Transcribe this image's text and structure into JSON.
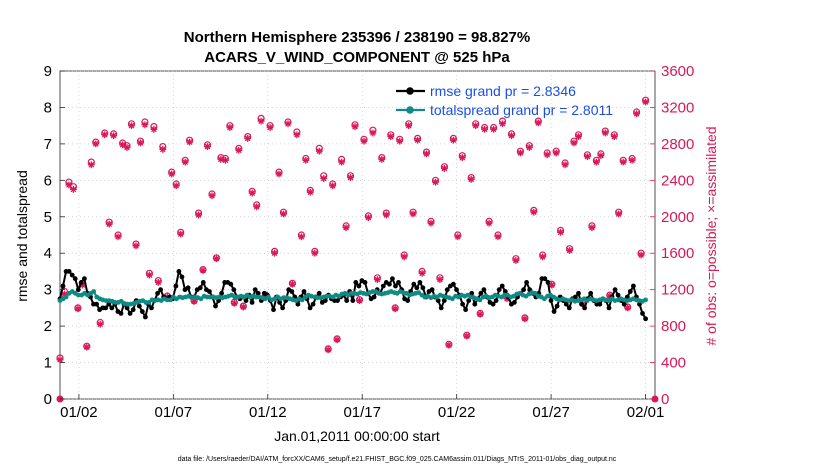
{
  "chart_data": {
    "type": "line",
    "title_line1": "Northern Hemisphere 235396 / 238190 = 98.827%",
    "title_line2": "ACARS_V_WIND_COMPONENT @ 525 hPa",
    "xlabel": "Jan.01,2011 00:00:00 start",
    "ylabel_left": "rmse and totalspread",
    "ylabel_right": "# of obs: o=possible; ×=assimilated",
    "footnote": "data file: /Users/raeder/DAI/ATM_forcXX/CAM6_setup/f.e21.FHIST_BGC.f09_025.CAM6assim.011/Diags_NTrS_2011-01/obs_diag_output.nc",
    "xlim_days": [
      0,
      31.5
    ],
    "ylim_left": [
      0,
      9
    ],
    "ylim_right": [
      0,
      3600
    ],
    "x_ticks": [
      {
        "day": 1,
        "label": "01/02"
      },
      {
        "day": 6,
        "label": "01/07"
      },
      {
        "day": 11,
        "label": "01/12"
      },
      {
        "day": 16,
        "label": "01/17"
      },
      {
        "day": 21,
        "label": "01/22"
      },
      {
        "day": 26,
        "label": "01/27"
      },
      {
        "day": 31,
        "label": "02/01"
      }
    ],
    "left_ticks": [
      "0",
      "1",
      "2",
      "3",
      "4",
      "5",
      "6",
      "7",
      "8",
      "9"
    ],
    "right_ticks": [
      "0",
      "400",
      "800",
      "1200",
      "1600",
      "2000",
      "2400",
      "2800",
      "3200",
      "3600"
    ],
    "colors": {
      "rmse": "#000000",
      "spread": "#0f8a84",
      "obs": "#d8185a",
      "legend_text": "#1a4fe0",
      "right_axis": "#d8185a"
    },
    "series": [
      {
        "name": "rmse grand pr = 2.8346",
        "values": [
          2.75,
          3.1,
          3.5,
          3.5,
          3.4,
          3.3,
          3.0,
          3.2,
          3.3,
          2.9,
          2.8,
          2.6,
          2.6,
          2.45,
          2.5,
          2.5,
          2.6,
          2.5,
          2.6,
          2.4,
          2.35,
          2.6,
          2.5,
          2.35,
          2.45,
          2.7,
          2.55,
          2.4,
          2.25,
          2.6,
          2.5,
          2.7,
          2.9,
          3.0,
          2.8,
          2.75,
          2.8,
          2.75,
          3.1,
          3.5,
          3.35,
          3.0,
          3.05,
          2.8,
          2.8,
          3.0,
          3.05,
          3.2,
          3.0,
          2.95,
          2.8,
          2.55,
          2.7,
          2.9,
          3.2,
          3.2,
          3.15,
          3.0,
          2.8,
          2.75,
          2.8,
          2.7,
          2.85,
          2.65,
          3.0,
          2.9,
          2.7,
          2.9,
          2.85,
          2.7,
          2.45,
          2.8,
          2.65,
          2.5,
          2.7,
          3.0,
          2.95,
          2.8,
          2.6,
          2.8,
          2.95,
          2.75,
          2.5,
          2.6,
          2.8,
          2.9,
          2.65,
          2.7,
          2.85,
          2.75,
          2.7,
          2.7,
          2.8,
          2.85,
          2.7,
          2.95,
          2.7,
          3.2,
          3.1,
          3.25,
          3.2,
          2.9,
          2.75,
          2.8,
          3.0,
          2.9,
          3.1,
          3.2,
          3.15,
          3.3,
          3.1,
          3.2,
          3.0,
          2.75,
          2.7,
          2.95,
          3.15,
          3.05,
          3.2,
          3.05,
          2.8,
          2.95,
          3.0,
          2.8,
          2.7,
          2.5,
          2.7,
          3.0,
          3.1,
          3.15,
          3.0,
          2.85,
          2.6,
          2.45,
          2.7,
          2.9,
          2.6,
          2.75,
          2.9,
          3.0,
          2.8,
          2.65,
          2.6,
          2.7,
          3.0,
          3.1,
          2.95,
          2.8,
          2.6,
          2.65,
          2.8,
          2.9,
          3.0,
          3.2,
          3.0,
          2.9,
          2.8,
          2.9,
          3.3,
          3.3,
          3.2,
          2.7,
          2.4,
          2.55,
          2.8,
          2.7,
          2.6,
          2.5,
          2.75,
          2.8,
          2.9,
          2.6,
          2.5,
          2.75,
          2.9,
          2.7,
          2.6,
          2.6,
          2.75,
          2.7,
          2.5,
          2.8,
          3.0,
          2.85,
          2.7,
          2.6,
          2.8,
          2.95,
          3.1,
          2.8,
          2.6,
          2.35,
          2.2
        ]
      },
      {
        "name": "totalspread grand pr = 2.8011",
        "values": [
          2.7,
          2.75,
          2.8,
          2.9,
          2.95,
          2.9,
          2.85,
          2.85,
          2.9,
          2.85,
          2.9,
          2.95,
          2.8,
          2.75,
          2.72,
          2.7,
          2.7,
          2.68,
          2.65,
          2.65,
          2.68,
          2.62,
          2.6,
          2.6,
          2.62,
          2.65,
          2.68,
          2.7,
          2.65,
          2.65,
          2.72,
          2.7,
          2.72,
          2.7,
          2.75,
          2.72,
          2.72,
          2.8,
          2.75,
          2.8,
          2.78,
          2.8,
          2.82,
          2.78,
          2.8,
          2.78,
          2.75,
          2.82,
          2.8,
          2.8,
          2.8,
          2.78,
          2.8,
          2.78,
          2.8,
          2.82,
          2.85,
          2.8,
          2.8,
          2.82,
          2.8,
          2.85,
          2.8,
          2.82,
          2.8,
          2.8,
          2.78,
          2.75,
          2.8,
          2.72,
          2.75,
          2.8,
          2.75,
          2.78,
          2.78,
          2.75,
          2.72,
          2.7,
          2.75,
          2.72,
          2.8,
          2.85,
          2.82,
          2.8,
          2.78,
          2.78,
          2.8,
          2.82,
          2.82,
          2.8,
          2.85,
          2.82,
          2.88,
          2.9,
          2.85,
          2.9,
          2.9,
          2.88,
          2.92,
          2.9,
          2.88,
          2.92,
          2.95,
          2.95,
          2.9,
          2.88,
          2.9,
          2.92,
          2.95,
          2.92,
          2.9,
          2.95,
          2.92,
          2.9,
          2.85,
          2.88,
          2.9,
          2.92,
          2.85,
          2.8,
          2.82,
          2.78,
          2.82,
          2.8,
          2.85,
          2.82,
          2.8,
          2.78,
          2.75,
          2.82,
          2.8,
          2.85,
          2.82,
          2.85,
          2.8,
          2.78,
          2.75,
          2.72,
          2.8,
          2.82,
          2.78,
          2.8,
          2.85,
          2.82,
          2.8,
          2.85,
          2.85,
          2.8,
          2.82,
          2.88,
          2.9,
          2.85,
          2.82,
          2.88,
          2.92,
          2.9,
          2.82,
          2.8,
          2.75,
          2.82,
          2.85,
          2.8,
          2.75,
          2.72,
          2.75,
          2.72,
          2.7,
          2.72,
          2.68,
          2.7,
          2.72,
          2.75,
          2.7,
          2.75,
          2.72,
          2.7,
          2.72,
          2.75,
          2.72,
          2.7,
          2.75,
          2.7,
          2.72,
          2.75,
          2.72,
          2.7,
          2.72,
          2.75,
          2.72,
          2.7,
          2.68,
          2.72
        ]
      }
    ],
    "obs_counts": {
      "possible": [
        450,
        1180,
        2380,
        2330,
        1000,
        1270,
        580,
        2600,
        2820,
        840,
        2920,
        1940,
        2910,
        1800,
        2810,
        2780,
        3020,
        1700,
        2830,
        3040,
        1380,
        2990,
        1300,
        2770,
        1130,
        2490,
        2360,
        1830,
        2620,
        2840,
        1080,
        2040,
        1420,
        2790,
        2250,
        1550,
        2650,
        2640,
        3000,
        1060,
        2750,
        1020,
        2880,
        2280,
        2130,
        3080,
        1140,
        3000,
        1620,
        2490,
        2050,
        3040,
        1270,
        2930,
        1800,
        2640,
        2290,
        1620,
        2750,
        2450,
        550,
        2360,
        660,
        2630,
        1900,
        2450,
        3010,
        1090,
        2850,
        2010,
        2950,
        1330,
        2650,
        2040,
        2900,
        1000,
        2850,
        1580,
        3020,
        2050,
        2860,
        1400,
        2710,
        1950,
        2400,
        1330,
        2550,
        600,
        2860,
        1800,
        2670,
        700,
        2430,
        3020,
        940,
        2980,
        1950,
        2980,
        1800,
        3050,
        1120,
        2910,
        1540,
        2720,
        890,
        2780,
        2070,
        3050,
        1580,
        2700,
        1260,
        2720,
        1850,
        2590,
        1650,
        2830,
        2900,
        1050,
        2680,
        1900,
        2620,
        2690,
        2940,
        1140,
        2900,
        2050,
        2620,
        1010,
        2640,
        3150,
        1600,
        3280
      ],
      "assimilated": [
        430,
        1150,
        2350,
        2300,
        990,
        1250,
        570,
        2570,
        2800,
        820,
        2900,
        1920,
        2890,
        1780,
        2790,
        2760,
        3000,
        1680,
        2810,
        3010,
        1360,
        2960,
        1280,
        2740,
        1120,
        2470,
        2340,
        1810,
        2600,
        2820,
        1070,
        2020,
        1410,
        2770,
        2230,
        1540,
        2630,
        2620,
        2980,
        1050,
        2730,
        1010,
        2860,
        2260,
        2110,
        3050,
        1130,
        2980,
        1600,
        2470,
        2030,
        3020,
        1260,
        2900,
        1780,
        2620,
        2270,
        1600,
        2720,
        2420,
        540,
        2340,
        650,
        2600,
        1880,
        2430,
        2990,
        1080,
        2830,
        1990,
        2920,
        1310,
        2630,
        2020,
        2880,
        990,
        2830,
        1560,
        3000,
        2030,
        2840,
        1380,
        2690,
        1930,
        2380,
        1310,
        2530,
        590,
        2840,
        1780,
        2650,
        690,
        2410,
        3000,
        930,
        2960,
        1930,
        2960,
        1780,
        3020,
        1100,
        2890,
        1520,
        2700,
        880,
        2760,
        2050,
        3030,
        1560,
        2680,
        1250,
        2700,
        1830,
        2570,
        1630,
        2810,
        2880,
        1040,
        2660,
        1880,
        2600,
        2670,
        2920,
        1130,
        2880,
        2030,
        2600,
        1000,
        2620,
        3130,
        1580,
        3260
      ]
    }
  }
}
